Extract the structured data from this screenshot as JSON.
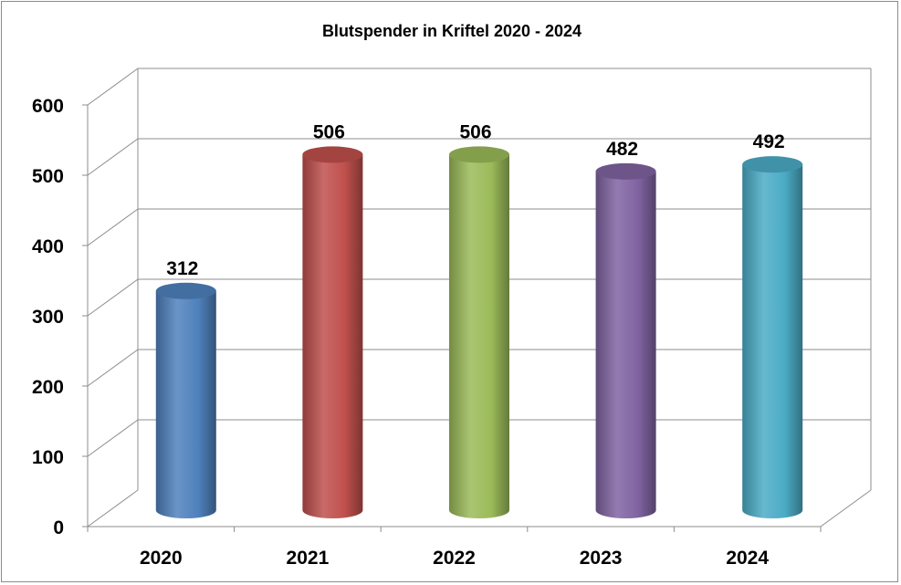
{
  "chart_data": {
    "type": "bar",
    "title": "Blutspender in Kriftel 2020 - 2024",
    "categories": [
      "2020",
      "2021",
      "2022",
      "2023",
      "2024"
    ],
    "values": [
      312,
      506,
      506,
      482,
      492
    ],
    "data_labels": [
      "312",
      "506",
      "506",
      "482",
      "492"
    ],
    "yticks": [
      "0",
      "100",
      "200",
      "300",
      "400",
      "500",
      "600"
    ],
    "ylim": [
      0,
      600
    ],
    "xlabel": "",
    "ylabel": "",
    "grid": true,
    "legend": "none",
    "style": "3d-cylinder",
    "colors": [
      "#4f81bd",
      "#c0504d",
      "#9bbb59",
      "#8064a2",
      "#4bacc6"
    ]
  }
}
